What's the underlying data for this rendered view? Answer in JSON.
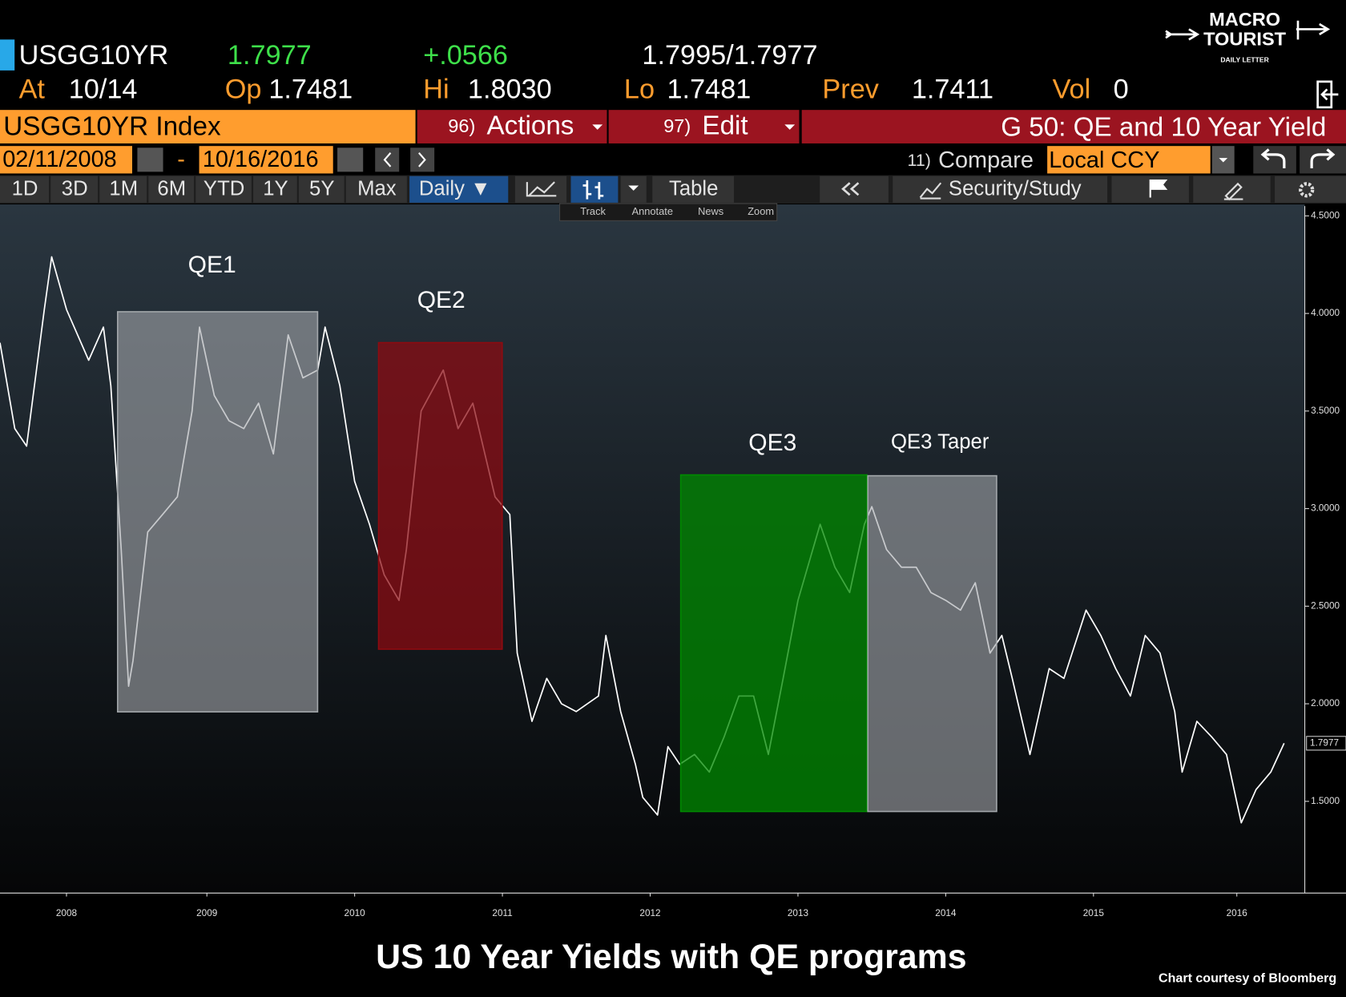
{
  "terminal": {
    "ticker": "USGG10YR",
    "last": "1.7977",
    "change": "+.0566",
    "bid_ask": "1.7995/1.7977",
    "quote_fields": [
      {
        "label": "At",
        "value": "10/14"
      },
      {
        "label": "Op",
        "value": "1.7481"
      },
      {
        "label": "Hi",
        "value": "1.8030"
      },
      {
        "label": "Lo",
        "value": "1.7481"
      },
      {
        "label": "Prev",
        "value": "1.7411"
      },
      {
        "label": "Vol",
        "value": "0"
      }
    ],
    "security": "USGG10YR Index",
    "actions": {
      "num": "96)",
      "label": "Actions"
    },
    "edit": {
      "num": "97)",
      "label": "Edit"
    },
    "page_title": "G 50: QE and 10 Year Yield",
    "date_start": "02/11/2008",
    "date_sep": "-",
    "date_end": "10/16/2016",
    "compare": {
      "num": "11)",
      "label": "Compare"
    },
    "currency": "Local CCY",
    "periods": [
      "1D",
      "3D",
      "1M",
      "6M",
      "YTD",
      "1Y",
      "5Y",
      "Max"
    ],
    "frequency": "Daily ▼",
    "view": "Table",
    "study": "Security/Study",
    "tools": [
      "Track",
      "Annotate",
      "News",
      "Zoom"
    ],
    "logo": [
      "MACRO",
      "TOURIST",
      "DAILY LETTER"
    ]
  },
  "chart_data": {
    "type": "line",
    "title": "US 10 Year Yields with QE programs",
    "credit": "Chart courtesy of Bloomberg",
    "color": "#ffffff",
    "x": [
      2008.1,
      2008.2,
      2008.28,
      2008.4,
      2008.45,
      2008.55,
      2008.7,
      2008.8,
      2008.85,
      2008.92,
      2008.97,
      2009.0,
      2009.1,
      2009.2,
      2009.3,
      2009.4,
      2009.45,
      2009.55,
      2009.65,
      2009.75,
      2009.85,
      2009.95,
      2010.05,
      2010.15,
      2010.25,
      2010.3,
      2010.4,
      2010.5,
      2010.6,
      2010.7,
      2010.8,
      2010.85,
      2010.95,
      2011.1,
      2011.2,
      2011.3,
      2011.45,
      2011.55,
      2011.6,
      2011.7,
      2011.8,
      2011.9,
      2012.0,
      2012.15,
      2012.2,
      2012.3,
      2012.4,
      2012.45,
      2012.55,
      2012.62,
      2012.7,
      2012.8,
      2012.9,
      2013.0,
      2013.1,
      2013.2,
      2013.3,
      2013.4,
      2013.5,
      2013.65,
      2013.75,
      2013.85,
      2013.95,
      2014.0,
      2014.1,
      2014.2,
      2014.3,
      2014.4,
      2014.5,
      2014.6,
      2014.7,
      2014.8,
      2014.88,
      2014.95,
      2015.07,
      2015.2,
      2015.3,
      2015.45,
      2015.55,
      2015.65,
      2015.75,
      2015.85,
      2015.95,
      2016.05,
      2016.1,
      2016.2,
      2016.3,
      2016.4,
      2016.5,
      2016.6,
      2016.7,
      2016.79
    ],
    "values": [
      3.85,
      3.41,
      3.32,
      4.02,
      4.29,
      4.02,
      3.76,
      3.93,
      3.63,
      2.79,
      2.09,
      2.22,
      2.88,
      2.97,
      3.06,
      3.5,
      3.93,
      3.58,
      3.45,
      3.41,
      3.54,
      3.28,
      3.89,
      3.67,
      3.71,
      3.93,
      3.63,
      3.14,
      2.92,
      2.66,
      2.53,
      2.79,
      3.5,
      3.71,
      3.41,
      3.54,
      3.06,
      2.97,
      2.26,
      1.91,
      2.13,
      2.0,
      1.96,
      2.04,
      2.35,
      1.96,
      1.69,
      1.52,
      1.43,
      1.78,
      1.69,
      1.74,
      1.65,
      1.83,
      2.04,
      2.04,
      1.74,
      2.13,
      2.53,
      2.92,
      2.7,
      2.57,
      2.92,
      3.01,
      2.79,
      2.7,
      2.7,
      2.57,
      2.53,
      2.48,
      2.62,
      2.26,
      2.35,
      2.13,
      1.74,
      2.18,
      2.13,
      2.48,
      2.35,
      2.18,
      2.04,
      2.35,
      2.26,
      1.96,
      1.65,
      1.91,
      1.83,
      1.74,
      1.39,
      1.56,
      1.65,
      1.7977
    ],
    "xlim": [
      2008.1,
      2016.93
    ],
    "xticks": [
      {
        "value": 2008.55,
        "label": "2008"
      },
      {
        "value": 2009.5,
        "label": "2009"
      },
      {
        "value": 2010.5,
        "label": "2010"
      },
      {
        "value": 2011.5,
        "label": "2011"
      },
      {
        "value": 2012.5,
        "label": "2012"
      },
      {
        "value": 2013.5,
        "label": "2013"
      },
      {
        "value": 2014.5,
        "label": "2014"
      },
      {
        "value": 2015.5,
        "label": "2015"
      },
      {
        "value": 2016.47,
        "label": "2016"
      }
    ],
    "ylim": [
      1.03,
      4.55
    ],
    "yticks": [
      {
        "value": 1.5,
        "label": "1.5000"
      },
      {
        "value": 2,
        "label": "2.0000"
      },
      {
        "value": 2.5,
        "label": "2.5000"
      },
      {
        "value": 3,
        "label": "3.0000"
      },
      {
        "value": 3.5,
        "label": "3.5000"
      },
      {
        "value": 4,
        "label": "4.0000"
      },
      {
        "value": 4.5,
        "label": "4.5000"
      }
    ],
    "annotations": [
      {
        "label": "QE1",
        "color": "#a3a7ab"
      },
      {
        "label": "QE2",
        "color": "#8e0a10"
      },
      {
        "label": "QE3",
        "color": "#008a00"
      },
      {
        "label": "QE3 Taper",
        "color": "#a3a7ab"
      }
    ]
  }
}
